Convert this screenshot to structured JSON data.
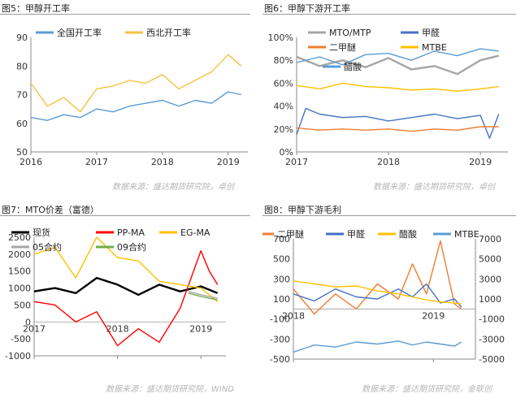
{
  "panels": [
    {
      "title": "图5：甲醇开工率",
      "source": "数据来源：盛达期货研究院，卓创",
      "chart_data": {
        "type": "line",
        "x_range": [
          2016,
          2019.3
        ],
        "x_ticks": [
          "2016",
          "2017",
          "2018",
          "2019"
        ],
        "ylim": [
          50,
          90
        ],
        "y_ticks": [
          "50",
          "60",
          "70",
          "80",
          "90"
        ],
        "legend": "top",
        "series": [
          {
            "name": "全国开工率",
            "color": "#5b9bd5",
            "x": [
              2016.0,
              2016.25,
              2016.5,
              2016.75,
              2017.0,
              2017.25,
              2017.5,
              2017.75,
              2018.0,
              2018.25,
              2018.5,
              2018.75,
              2019.0,
              2019.2
            ],
            "y": [
              62,
              61,
              63,
              62,
              65,
              64,
              66,
              67,
              68,
              66,
              68,
              67,
              71,
              70
            ]
          },
          {
            "name": "西北开工率",
            "color": "#f5c242",
            "x": [
              2016.0,
              2016.25,
              2016.5,
              2016.75,
              2017.0,
              2017.25,
              2017.5,
              2017.75,
              2018.0,
              2018.25,
              2018.5,
              2018.75,
              2019.0,
              2019.2
            ],
            "y": [
              74,
              66,
              69,
              64,
              72,
              73,
              75,
              74,
              77,
              72,
              75,
              78,
              84,
              80
            ]
          }
        ]
      }
    },
    {
      "title": "图6：甲醇下游开工率",
      "source": "数据来源：盛达期货研究院，卓创",
      "chart_data": {
        "type": "line",
        "x_range": [
          2017,
          2019.3
        ],
        "x_ticks": [
          "2017",
          "2018",
          "2019"
        ],
        "ylim": [
          0,
          100
        ],
        "y_ticks": [
          "0%",
          "20%",
          "40%",
          "60%",
          "80%",
          "100%"
        ],
        "legend": "top",
        "series": [
          {
            "name": "MTO/MTP",
            "color": "#a6a6a6",
            "x": [
              2017.0,
              2017.25,
              2017.5,
              2017.75,
              2018.0,
              2018.25,
              2018.5,
              2018.75,
              2019.0,
              2019.2
            ],
            "y": [
              83,
              75,
              80,
              74,
              82,
              72,
              75,
              68,
              80,
              84
            ]
          },
          {
            "name": "甲醛",
            "color": "#4472c4",
            "x": [
              2017.0,
              2017.1,
              2017.25,
              2017.5,
              2017.75,
              2018.0,
              2018.25,
              2018.5,
              2018.75,
              2019.0,
              2019.1,
              2019.2
            ],
            "y": [
              15,
              38,
              33,
              30,
              31,
              27,
              30,
              33,
              29,
              32,
              12,
              33
            ]
          },
          {
            "name": "二甲醚",
            "color": "#ed7d31",
            "x": [
              2017.0,
              2017.25,
              2017.5,
              2017.75,
              2018.0,
              2018.25,
              2018.5,
              2018.75,
              2019.0,
              2019.2
            ],
            "y": [
              21,
              19,
              20,
              19,
              20,
              18,
              20,
              19,
              22,
              22
            ]
          },
          {
            "name": "MTBE",
            "color": "#ffc000",
            "x": [
              2017.0,
              2017.25,
              2017.5,
              2017.75,
              2018.0,
              2018.25,
              2018.5,
              2018.75,
              2019.0,
              2019.2
            ],
            "y": [
              58,
              55,
              60,
              57,
              56,
              54,
              55,
              53,
              55,
              57
            ]
          },
          {
            "name": "醋酸",
            "color": "#5b9bd5",
            "x": [
              2017.0,
              2017.25,
              2017.5,
              2017.75,
              2018.0,
              2018.25,
              2018.5,
              2018.75,
              2019.0,
              2019.2
            ],
            "y": [
              78,
              83,
              76,
              85,
              86,
              80,
              88,
              84,
              90,
              88
            ]
          }
        ]
      }
    },
    {
      "title": "图7：MTO价差（富德）",
      "source": "数据来源：盛达期货研究院，WIND",
      "chart_data": {
        "type": "line",
        "x_range": [
          2017,
          2019.3
        ],
        "x_ticks": [
          "2017",
          "2018",
          "2019"
        ],
        "ylim": [
          -1000,
          2500
        ],
        "y_ticks": [
          "-1000",
          "-500",
          "0",
          "500",
          "1000",
          "1500",
          "2000",
          "2500"
        ],
        "legend": "top",
        "series": [
          {
            "name": "现货",
            "color": "#000000",
            "x": [
              2017.0,
              2017.25,
              2017.5,
              2017.75,
              2018.0,
              2018.25,
              2018.5,
              2018.75,
              2019.0,
              2019.2
            ],
            "y": [
              900,
              1000,
              850,
              1300,
              1100,
              800,
              1100,
              900,
              1050,
              850
            ]
          },
          {
            "name": "PP-MA",
            "color": "#ff0000",
            "x": [
              2017.0,
              2017.25,
              2017.5,
              2017.75,
              2018.0,
              2018.25,
              2018.5,
              2018.75,
              2019.0,
              2019.1,
              2019.2
            ],
            "y": [
              600,
              500,
              0,
              300,
              -700,
              -200,
              -600,
              400,
              2100,
              1500,
              1100
            ]
          },
          {
            "name": "EG-MA",
            "color": "#ffc000",
            "x": [
              2017.0,
              2017.25,
              2017.5,
              2017.75,
              2018.0,
              2018.25,
              2018.5,
              2018.75,
              2019.0,
              2019.2
            ],
            "y": [
              2000,
              2200,
              1300,
              2500,
              1900,
              1800,
              1200,
              1100,
              1000,
              600
            ]
          },
          {
            "name": "05合约",
            "color": "#a6a6a6",
            "x": [
              2018.85,
              2019.0,
              2019.1,
              2019.2
            ],
            "y": [
              900,
              800,
              750,
              700
            ]
          },
          {
            "name": "09合约",
            "color": "#70ad47",
            "x": [
              2018.85,
              2019.0,
              2019.1,
              2019.2
            ],
            "y": [
              850,
              750,
              700,
              650
            ]
          }
        ]
      }
    },
    {
      "title": "图8：甲醇下游毛利",
      "source": "数据来源：盛达期货研究院，金联创",
      "chart_data": {
        "type": "line",
        "x_range": [
          2018,
          2019.3
        ],
        "x_ticks": [
          "2018",
          "2019"
        ],
        "ylim_left": [
          -500,
          700
        ],
        "y_ticks_left": [
          "-500",
          "-300",
          "-100",
          "100",
          "300",
          "500",
          "700"
        ],
        "ylim_right": [
          -5000,
          7000
        ],
        "y_ticks_right": [
          "-5000",
          "-3000",
          "-1000",
          "1000",
          "3000",
          "5000",
          "7000"
        ],
        "legend": "top",
        "series": [
          {
            "name": "二甲醚",
            "color": "#ed7d31",
            "axis": "left",
            "x": [
              2018.0,
              2018.15,
              2018.3,
              2018.45,
              2018.6,
              2018.75,
              2018.85,
              2018.95,
              2019.05,
              2019.15,
              2019.2
            ],
            "y": [
              200,
              -50,
              150,
              0,
              250,
              100,
              450,
              150,
              680,
              50,
              0
            ]
          },
          {
            "name": "甲醛",
            "color": "#4472c4",
            "axis": "left",
            "x": [
              2018.0,
              2018.15,
              2018.3,
              2018.45,
              2018.6,
              2018.75,
              2018.85,
              2018.95,
              2019.05,
              2019.15,
              2019.2
            ],
            "y": [
              150,
              80,
              200,
              120,
              100,
              200,
              120,
              250,
              60,
              100,
              20
            ]
          },
          {
            "name": "醋酸",
            "color": "#ffc000",
            "axis": "left",
            "x": [
              2018.0,
              2018.15,
              2018.3,
              2018.45,
              2018.6,
              2018.75,
              2018.85,
              2018.95,
              2019.05,
              2019.15,
              2019.2
            ],
            "y": [
              280,
              250,
              220,
              230,
              180,
              150,
              120,
              90,
              70,
              60,
              50
            ]
          },
          {
            "name": "MTBE",
            "color": "#5b9bd5",
            "axis": "right",
            "x": [
              2018.0,
              2018.15,
              2018.3,
              2018.45,
              2018.6,
              2018.75,
              2018.85,
              2018.95,
              2019.05,
              2019.15,
              2019.2
            ],
            "y": [
              -4300,
              -3600,
              -3800,
              -3300,
              -3500,
              -3200,
              -3600,
              -3300,
              -3500,
              -3700,
              -3300
            ]
          }
        ]
      }
    }
  ]
}
